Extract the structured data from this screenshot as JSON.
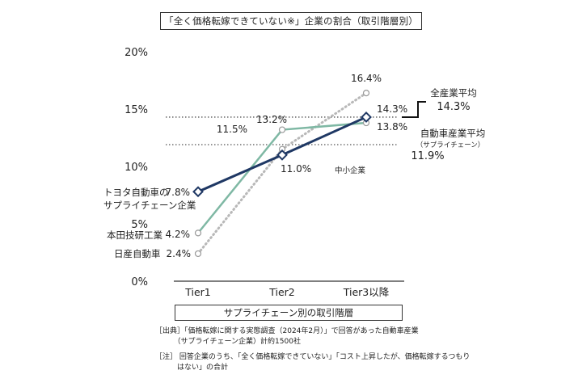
{
  "chart_data": {
    "type": "line",
    "title": "「全く価格転嫁できていない※」企業の割合（取引階層別）",
    "xlabel": "サプライチェーン別の取引階層",
    "ylabel": "",
    "categories": [
      "Tier1",
      "Tier2",
      "Tier3以降"
    ],
    "ylim": [
      0,
      20
    ],
    "yticks": [
      "0%",
      "5%",
      "10%",
      "15%",
      "20%"
    ],
    "grid": false,
    "series": [
      {
        "name": "トヨタ自動車のサプライチェーン企業",
        "values": [
          7.8,
          11.0,
          14.3
        ],
        "labels": [
          "7.8%",
          "11.0%",
          "14.3%"
        ],
        "color": "#1f3864"
      },
      {
        "name": "本田技研工業",
        "values": [
          4.2,
          13.2,
          13.8
        ],
        "labels": [
          "4.2%",
          "13.2%",
          "13.8%"
        ],
        "color": "#7fb8a4"
      },
      {
        "name": "日産自動車",
        "values": [
          2.4,
          11.5,
          16.4
        ],
        "labels": [
          "2.4%",
          "11.5%",
          "16.4%"
        ],
        "color": "#b8b8b8"
      }
    ],
    "reference_lines": [
      {
        "label": "全産業平均",
        "value": 14.3,
        "value_label": "14.3%"
      },
      {
        "label": "自動車産業平均",
        "sublabel": "（サプライチェーン）",
        "value": 11.9,
        "value_label": "11.9%"
      }
    ],
    "annotations": [
      "中小企業"
    ]
  },
  "notes": {
    "source": "［出典］「価格転嫁に関する実態調査（2024年2月）」で回答があった自動車産業\n　　　（サプライチェーン企業）計約1500社",
    "footnote": "［注］ 回答企業のうち、「全く価格転嫁できていない」「コスト上昇したが、価格転嫁するつもり\n　　　はない」の合計"
  }
}
